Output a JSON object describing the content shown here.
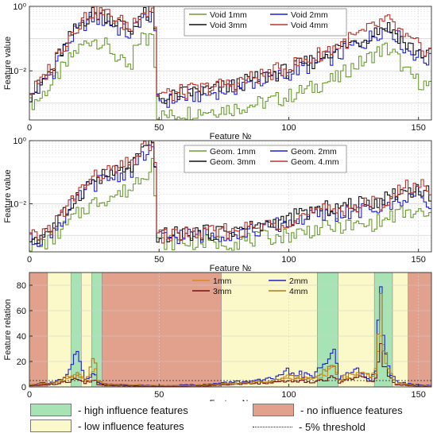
{
  "colors": {
    "green": "#6b9e2f",
    "blue": "#1f1fd0",
    "black": "#111111",
    "red": "#b8342a",
    "orange": "#d98a1a",
    "dark_red": "#7a1010",
    "high_fill": "#a7e3b4",
    "low_fill": "#fbf8c9",
    "no_fill": "#e2a18c"
  },
  "chart_data": [
    {
      "type": "line",
      "ylabel": "Feature value",
      "xlabel": "Feature №",
      "yscale": "log",
      "ylim": [
        0.0003,
        1
      ],
      "xlim": [
        0,
        155
      ],
      "xticks": [
        0,
        50,
        100,
        150
      ],
      "yticks": [
        1,
        0.01
      ],
      "ytick_labels": [
        "10⁰",
        "10⁻²"
      ],
      "grid": true,
      "legend_position": "top-right",
      "legend": [
        "Void 1mm",
        "Void 2mm",
        "Void 3mm",
        "Void 4mm"
      ],
      "series_colors": [
        "#6b9e2f",
        "#1f1fd0",
        "#111111",
        "#b8342a"
      ],
      "profile": {
        "x": [
          1,
          5,
          10,
          15,
          20,
          25,
          30,
          35,
          40,
          44,
          46,
          48,
          49,
          50,
          55,
          60,
          70,
          80,
          90,
          100,
          110,
          120,
          130,
          138,
          140,
          145,
          150,
          155
        ],
        "series": [
          {
            "name": "Void 1mm",
            "values": [
              0.0009,
              0.0015,
              0.004,
              0.015,
              0.05,
              0.1,
              0.06,
              0.02,
              0.01,
              0.12,
              0.08,
              0.2,
              0.02,
              0.0004,
              0.0004,
              0.0005,
              0.0006,
              0.0007,
              0.001,
              0.0015,
              0.003,
              0.006,
              0.02,
              0.05,
              0.04,
              0.01,
              0.005,
              0.003
            ]
          },
          {
            "name": "Void 2mm",
            "values": [
              0.0015,
              0.003,
              0.01,
              0.05,
              0.2,
              0.45,
              0.35,
              0.2,
              0.12,
              0.45,
              0.35,
              0.7,
              0.1,
              0.0012,
              0.0012,
              0.0015,
              0.002,
              0.003,
              0.005,
              0.008,
              0.015,
              0.03,
              0.08,
              0.2,
              0.18,
              0.05,
              0.03,
              0.02
            ]
          },
          {
            "name": "Void 3mm",
            "values": [
              0.0018,
              0.0035,
              0.012,
              0.06,
              0.25,
              0.6,
              0.55,
              0.3,
              0.15,
              0.6,
              0.5,
              0.9,
              0.15,
              0.0015,
              0.0015,
              0.002,
              0.0025,
              0.0035,
              0.006,
              0.01,
              0.02,
              0.05,
              0.1,
              0.25,
              0.2,
              0.07,
              0.04,
              0.03
            ]
          },
          {
            "name": "Void 4mm",
            "values": [
              0.002,
              0.004,
              0.015,
              0.08,
              0.3,
              0.7,
              0.6,
              0.35,
              0.2,
              0.8,
              0.6,
              1.0,
              0.2,
              0.002,
              0.0018,
              0.0022,
              0.003,
              0.004,
              0.007,
              0.012,
              0.025,
              0.06,
              0.15,
              0.35,
              0.3,
              0.1,
              0.06,
              0.04
            ]
          }
        ]
      }
    },
    {
      "type": "line",
      "ylabel": "Feature value",
      "xlabel": "Feature №",
      "yscale": "log",
      "ylim": [
        0.0003,
        1
      ],
      "xlim": [
        0,
        155
      ],
      "xticks": [
        0,
        50,
        100,
        150
      ],
      "yticks": [
        1,
        0.01
      ],
      "ytick_labels": [
        "10⁰",
        "10⁻²"
      ],
      "grid": true,
      "legend_position": "top-center",
      "legend": [
        "Geom. 1mm",
        "Geom. 2mm",
        "Geom. 3mm",
        "Geom. 4.mm"
      ],
      "series_colors": [
        "#6b9e2f",
        "#1f1fd0",
        "#111111",
        "#b8342a"
      ],
      "profile": {
        "x": [
          1,
          5,
          10,
          15,
          20,
          25,
          30,
          35,
          40,
          44,
          46,
          48,
          49,
          50,
          55,
          60,
          70,
          80,
          90,
          100,
          110,
          120,
          130,
          138,
          140,
          145,
          150,
          155
        ],
        "series": [
          {
            "name": "Geom. 1mm",
            "values": [
              0.0005,
              0.0005,
              0.0008,
              0.002,
              0.005,
              0.01,
              0.015,
              0.02,
              0.03,
              0.08,
              0.1,
              0.25,
              0.02,
              0.0006,
              0.0006,
              0.0006,
              0.0006,
              0.0006,
              0.0008,
              0.001,
              0.0015,
              0.002,
              0.002,
              0.003,
              0.004,
              0.005,
              0.005,
              0.004
            ]
          },
          {
            "name": "Geom. 2mm",
            "values": [
              0.0007,
              0.0008,
              0.0015,
              0.004,
              0.015,
              0.04,
              0.06,
              0.08,
              0.12,
              0.3,
              0.4,
              0.7,
              0.1,
              0.0008,
              0.0009,
              0.001,
              0.001,
              0.0012,
              0.0015,
              0.0025,
              0.004,
              0.005,
              0.006,
              0.008,
              0.01,
              0.015,
              0.02,
              0.012
            ]
          },
          {
            "name": "Geom. 3mm",
            "values": [
              0.0008,
              0.0009,
              0.0018,
              0.005,
              0.02,
              0.05,
              0.08,
              0.1,
              0.15,
              0.4,
              0.5,
              0.9,
              0.12,
              0.001,
              0.001,
              0.0012,
              0.0012,
              0.0015,
              0.002,
              0.003,
              0.006,
              0.008,
              0.01,
              0.015,
              0.02,
              0.025,
              0.03,
              0.02
            ]
          },
          {
            "name": "Geom. 4.mm",
            "values": [
              0.0008,
              0.001,
              0.002,
              0.006,
              0.025,
              0.06,
              0.1,
              0.12,
              0.2,
              0.5,
              0.6,
              1.0,
              0.15,
              0.0009,
              0.001,
              0.0011,
              0.0012,
              0.0014,
              0.0018,
              0.003,
              0.005,
              0.007,
              0.009,
              0.012,
              0.015,
              0.03,
              0.04,
              0.03
            ]
          }
        ]
      }
    },
    {
      "type": "line",
      "ylabel": "Feature relation",
      "xlabel": "Feature №",
      "yscale": "linear",
      "ylim": [
        0,
        90
      ],
      "xlim": [
        0,
        155
      ],
      "xticks": [
        0,
        50,
        100,
        150
      ],
      "yticks": [
        0,
        20,
        40,
        60,
        80
      ],
      "ytick_labels": [
        "0",
        "20",
        "40",
        "60",
        "80"
      ],
      "grid": true,
      "legend_position": "top-center",
      "legend": [
        "1mm",
        "2mm",
        "3mm",
        "4mm"
      ],
      "series_colors": [
        "#d98a1a",
        "#1f1fd0",
        "#7a1010",
        "#b07a1a"
      ],
      "threshold": 5,
      "regions": [
        {
          "from": 0,
          "to": 7,
          "kind": "no"
        },
        {
          "from": 7,
          "to": 16,
          "kind": "low"
        },
        {
          "from": 16,
          "to": 20,
          "kind": "high"
        },
        {
          "from": 20,
          "to": 24,
          "kind": "low"
        },
        {
          "from": 24,
          "to": 28,
          "kind": "high"
        },
        {
          "from": 28,
          "to": 74,
          "kind": "no"
        },
        {
          "from": 74,
          "to": 111,
          "kind": "low"
        },
        {
          "from": 111,
          "to": 119,
          "kind": "high"
        },
        {
          "from": 119,
          "to": 133,
          "kind": "low"
        },
        {
          "from": 133,
          "to": 140,
          "kind": "high"
        },
        {
          "from": 140,
          "to": 146,
          "kind": "low"
        },
        {
          "from": 146,
          "to": 155,
          "kind": "no"
        }
      ],
      "profile": {
        "x": [
          1,
          10,
          15,
          19,
          22,
          26,
          27,
          30,
          50,
          60,
          70,
          80,
          90,
          98,
          100,
          110,
          115,
          118,
          120,
          125,
          128,
          132,
          134,
          136,
          137,
          139,
          142,
          148,
          155
        ],
        "series": [
          {
            "name": "1mm",
            "values": [
              1,
              3,
              6,
              12,
              4,
              14,
              4,
              2,
              1,
              1,
              1,
              3,
              4,
              6,
              8,
              6,
              10,
              15,
              6,
              8,
              12,
              8,
              12,
              45,
              30,
              12,
              3,
              1,
              0.5
            ]
          },
          {
            "name": "2mm",
            "values": [
              2,
              4,
              8,
              25,
              6,
              10,
              3,
              2,
              1,
              1.5,
              2,
              4,
              5,
              8,
              12,
              8,
              20,
              30,
              8,
              10,
              14,
              6,
              10,
              90,
              50,
              15,
              4,
              2,
              1
            ]
          },
          {
            "name": "3mm",
            "values": [
              1,
              2,
              4,
              6,
              3,
              6,
              2,
              1,
              0.5,
              0.5,
              1,
              2,
              3,
              4,
              5,
              4,
              6,
              8,
              4,
              6,
              8,
              5,
              6,
              30,
              20,
              8,
              2,
              1,
              0.5
            ]
          },
          {
            "name": "4mm",
            "values": [
              1.5,
              3,
              7,
              10,
              5,
              25,
              5,
              2,
              1,
              1,
              1.5,
              3,
              4,
              6,
              9,
              7,
              12,
              16,
              7,
              9,
              12,
              7,
              11,
              60,
              35,
              12,
              3,
              1.5,
              0.8
            ]
          }
        ]
      }
    }
  ],
  "bottom_legend": {
    "high": "- high influence features",
    "low": "- low influence features",
    "no": "- no influence features",
    "threshold": "- 5% threshold"
  }
}
